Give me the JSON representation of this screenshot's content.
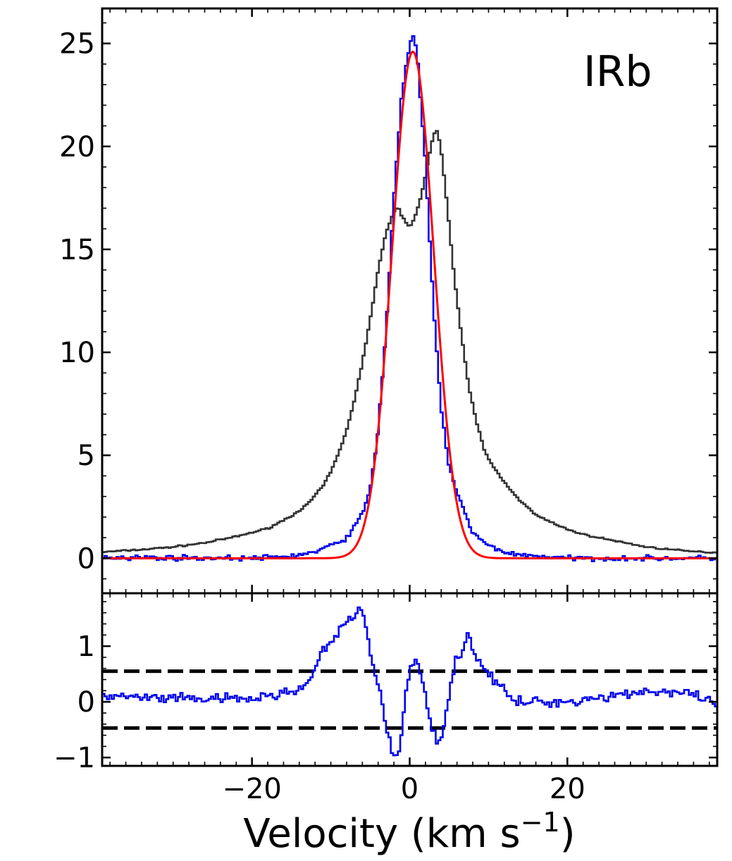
{
  "chart_data": [
    {
      "type": "line",
      "panel": "top",
      "annotation": "IRb",
      "xlim": [
        -39,
        39
      ],
      "ylim": [
        -1.7,
        26.7
      ],
      "yticks": [
        0,
        5,
        10,
        15,
        20,
        25
      ],
      "ytick_labels": [
        "0",
        "5",
        "10",
        "15",
        "20",
        "25"
      ],
      "step": 0.3,
      "series": [
        {
          "style": "steps",
          "color": "#333333",
          "points": [
            [
              -39,
              0.3
            ],
            [
              -34,
              0.42
            ],
            [
              -30,
              0.55
            ],
            [
              -26,
              0.75
            ],
            [
              -22,
              1.05
            ],
            [
              -18,
              1.45
            ],
            [
              -15,
              2.05
            ],
            [
              -13,
              2.6
            ],
            [
              -11,
              3.5
            ],
            [
              -10,
              4.2
            ],
            [
              -9,
              5.1
            ],
            [
              -8,
              6.2
            ],
            [
              -7,
              7.7
            ],
            [
              -6,
              9.5
            ],
            [
              -5,
              11.6
            ],
            [
              -4,
              14.0
            ],
            [
              -3,
              15.8
            ],
            [
              -2,
              16.8
            ],
            [
              -1.5,
              17.1
            ],
            [
              -1,
              16.6
            ],
            [
              0,
              16.1
            ],
            [
              0.7,
              16.6
            ],
            [
              1.5,
              17.6
            ],
            [
              2.3,
              19.2
            ],
            [
              3,
              20.6
            ],
            [
              3.5,
              20.8
            ],
            [
              4,
              19.8
            ],
            [
              4.8,
              17.0
            ],
            [
              5.5,
              14.2
            ],
            [
              6.5,
              11.0
            ],
            [
              7.5,
              8.3
            ],
            [
              8.5,
              6.6
            ],
            [
              9.5,
              5.2
            ],
            [
              10.5,
              4.5
            ],
            [
              12,
              3.7
            ],
            [
              14,
              2.8
            ],
            [
              16,
              2.1
            ],
            [
              19,
              1.55
            ],
            [
              22,
              1.15
            ],
            [
              26,
              0.85
            ],
            [
              30,
              0.55
            ],
            [
              35,
              0.35
            ],
            [
              39,
              0.27
            ]
          ]
        },
        {
          "style": "steps",
          "color": "#0000ee",
          "points": [
            [
              -39,
              0.05
            ],
            [
              -20,
              0.0
            ],
            [
              -15,
              0.1
            ],
            [
              -12,
              0.3
            ],
            [
              -10,
              0.6
            ],
            [
              -8,
              1.0
            ],
            [
              -7,
              1.5
            ],
            [
              -6,
              2.2
            ],
            [
              -5,
              3.3
            ],
            [
              -4,
              6.2
            ],
            [
              -3,
              11.0
            ],
            [
              -2,
              17.5
            ],
            [
              -1,
              22.5
            ],
            [
              0,
              25.0
            ],
            [
              0.5,
              25.4
            ],
            [
              1,
              24.2
            ],
            [
              2,
              19.2
            ],
            [
              3,
              12.3
            ],
            [
              4,
              7.2
            ],
            [
              5,
              4.5
            ],
            [
              6,
              3.2
            ],
            [
              7,
              2.2
            ],
            [
              8,
              1.2
            ],
            [
              10,
              0.6
            ],
            [
              13,
              0.2
            ],
            [
              20,
              0.0
            ],
            [
              39,
              0.0
            ]
          ]
        },
        {
          "style": "gaussian",
          "color": "#ff0000",
          "amplitude": 24.6,
          "center": 0.4,
          "sigma": 2.65
        }
      ]
    },
    {
      "type": "line",
      "panel": "bottom",
      "xlim": [
        -39,
        39
      ],
      "ylim": [
        -1.15,
        1.95
      ],
      "yticks": [
        -1,
        0,
        1
      ],
      "ytick_labels": [
        "−1",
        "0",
        "1"
      ],
      "xticks": [
        -20,
        0,
        20
      ],
      "xtick_labels": [
        "−20",
        "0",
        "20"
      ],
      "xlabel": "Velocity (km s",
      "xlabel_sup": "−1",
      "xlabel_close": ")",
      "step": 0.3,
      "hlines": [
        0.55,
        -0.47
      ],
      "series": [
        {
          "style": "steps",
          "color": "#0000ee",
          "points": [
            [
              -39,
              0.1
            ],
            [
              -30,
              0.05
            ],
            [
              -20,
              0.05
            ],
            [
              -16,
              0.15
            ],
            [
              -13,
              0.3
            ],
            [
              -12,
              0.6
            ],
            [
              -11,
              0.9
            ],
            [
              -10,
              1.05
            ],
            [
              -9,
              1.25
            ],
            [
              -8,
              1.4
            ],
            [
              -7,
              1.55
            ],
            [
              -6.5,
              1.7
            ],
            [
              -6,
              1.6
            ],
            [
              -5.5,
              1.35
            ],
            [
              -5,
              0.9
            ],
            [
              -4,
              0.3
            ],
            [
              -3,
              -0.4
            ],
            [
              -2.5,
              -0.75
            ],
            [
              -2,
              -0.95
            ],
            [
              -1.5,
              -1.0
            ],
            [
              -1,
              -0.55
            ],
            [
              -0.5,
              0.1
            ],
            [
              0,
              0.55
            ],
            [
              0.5,
              0.7
            ],
            [
              1,
              0.65
            ],
            [
              1.5,
              0.5
            ],
            [
              2,
              0.15
            ],
            [
              2.5,
              -0.2
            ],
            [
              3,
              -0.55
            ],
            [
              3.5,
              -0.7
            ],
            [
              4,
              -0.6
            ],
            [
              4.5,
              -0.3
            ],
            [
              5,
              0.1
            ],
            [
              5.5,
              0.5
            ],
            [
              6,
              0.8
            ],
            [
              7,
              1.0
            ],
            [
              7.5,
              1.3
            ],
            [
              8,
              0.95
            ],
            [
              9,
              0.7
            ],
            [
              10,
              0.5
            ],
            [
              11,
              0.35
            ],
            [
              12,
              0.2
            ],
            [
              13,
              0.0
            ],
            [
              20,
              0.0
            ],
            [
              30,
              0.2
            ],
            [
              35,
              0.15
            ],
            [
              39,
              -0.05
            ]
          ]
        }
      ]
    }
  ]
}
